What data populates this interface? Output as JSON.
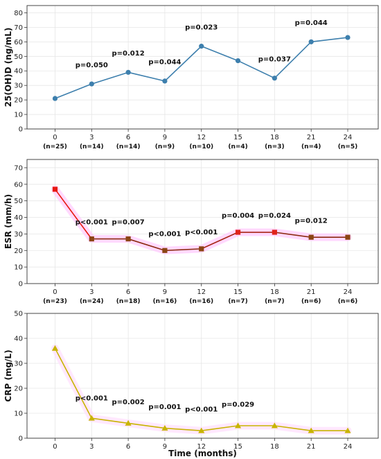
{
  "chart_data": [
    {
      "type": "line",
      "ylabel": "25(OH)D (ng/mL)",
      "xlabel": "",
      "x": [
        0,
        3,
        6,
        9,
        12,
        15,
        18,
        21,
        24
      ],
      "xlim": [
        -2.3,
        26.5
      ],
      "ylim": [
        0,
        85
      ],
      "yticks": [
        0,
        10,
        20,
        30,
        40,
        50,
        60,
        70,
        80
      ],
      "grid": true,
      "color": "#3d7fad",
      "marker": "circle",
      "series": [
        {
          "values": [
            21,
            31,
            39,
            33,
            57,
            47,
            35,
            60,
            63
          ],
          "segment_colors": [
            "#3d7fad"
          ],
          "marker_colors": [
            "#3d7fad"
          ]
        }
      ],
      "n_labels": [
        "(n=25)",
        "(n=14)",
        "(n=14)",
        "(n=9)",
        "(n=10)",
        "(n=4)",
        "(n=3)",
        "(n=4)",
        "(n=5)"
      ],
      "annotations": [
        {
          "x": 3,
          "y": 44,
          "text": "p=0.050"
        },
        {
          "x": 6,
          "y": 52,
          "text": "p=0.012"
        },
        {
          "x": 9,
          "y": 46,
          "text": "p=0.044"
        },
        {
          "x": 12,
          "y": 70,
          "text": "p=0.023"
        },
        {
          "x": 18,
          "y": 48,
          "text": "p=0.037"
        },
        {
          "x": 21,
          "y": 73,
          "text": "p=0.044"
        }
      ]
    },
    {
      "type": "line",
      "ylabel": "ESR (mm/h)",
      "xlabel": "",
      "x": [
        0,
        3,
        6,
        9,
        12,
        15,
        18,
        21,
        24
      ],
      "xlim": [
        -2.3,
        26.5
      ],
      "ylim": [
        0,
        75
      ],
      "yticks": [
        0,
        10,
        20,
        30,
        40,
        50,
        60,
        70
      ],
      "grid": true,
      "color": "#8b2a0e",
      "marker": "square",
      "series": [
        {
          "values": [
            57,
            27,
            27,
            20,
            21,
            31,
            31,
            28,
            28
          ],
          "segment_colors": [
            "#e8190f",
            "#8b2a0e",
            "#8b2a0e",
            "#8b2a0e",
            "#a72612",
            "#a72612",
            "#8b2a0e",
            "#8b2a0e"
          ],
          "marker_colors": [
            "#e8190f",
            "#8b4513",
            "#8b4513",
            "#8b4513",
            "#8b4513",
            "#e0231a",
            "#e0231a",
            "#8b4513",
            "#8b4513"
          ],
          "halo_color": "#ffccff"
        }
      ],
      "n_labels": [
        "(n=23)",
        "(n=24)",
        "(n=18)",
        "(n=16)",
        "(n=16)",
        "(n=7)",
        "(n=7)",
        "(n=6)",
        "(n=6)"
      ],
      "annotations": [
        {
          "x": 3,
          "y": 37,
          "text": "p<0.001"
        },
        {
          "x": 6,
          "y": 37,
          "text": "p=0.007"
        },
        {
          "x": 9,
          "y": 30,
          "text": "p<0.001"
        },
        {
          "x": 12,
          "y": 31,
          "text": "p<0.001"
        },
        {
          "x": 15,
          "y": 41,
          "text": "p=0.004"
        },
        {
          "x": 18,
          "y": 41,
          "text": "p=0.024"
        },
        {
          "x": 21,
          "y": 38,
          "text": "p=0.012"
        }
      ]
    },
    {
      "type": "line",
      "ylabel": "CRP (mg/L)",
      "xlabel": "Time (months)",
      "x": [
        0,
        3,
        6,
        9,
        12,
        15,
        18,
        21,
        24
      ],
      "xlim": [
        -2.3,
        26.5
      ],
      "ylim": [
        0,
        50
      ],
      "yticks": [
        0,
        10,
        20,
        30,
        40,
        50
      ],
      "grid": true,
      "color": "#c8b400",
      "marker": "triangle",
      "series": [
        {
          "values": [
            36,
            8,
            6,
            4,
            3,
            5,
            5,
            3,
            3
          ],
          "segment_colors": [
            "#c8b400"
          ],
          "marker_colors": [
            "#c8b400"
          ],
          "halo_color": "#ffe0ff"
        }
      ],
      "n_labels": [],
      "annotations": [
        {
          "x": 3,
          "y": 16,
          "text": "p<0.001"
        },
        {
          "x": 6,
          "y": 14.5,
          "text": "p=0.002"
        },
        {
          "x": 9,
          "y": 12.5,
          "text": "p=0.001"
        },
        {
          "x": 12,
          "y": 11.5,
          "text": "p<0.001"
        },
        {
          "x": 15,
          "y": 13.5,
          "text": "p=0.029"
        }
      ]
    }
  ]
}
